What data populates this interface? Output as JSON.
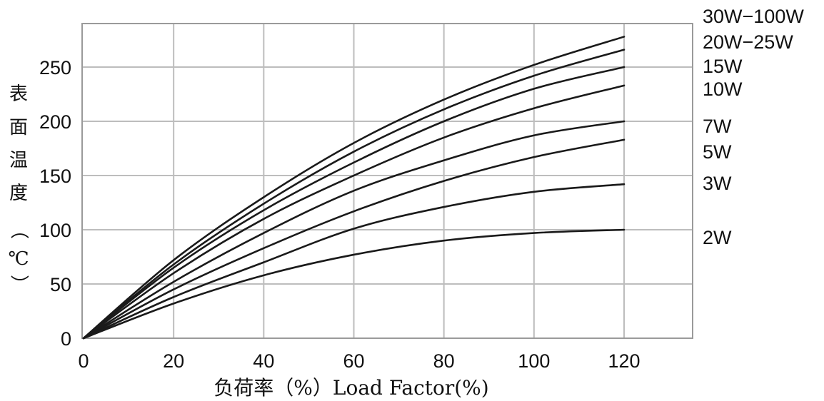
{
  "chart_data": {
    "type": "line",
    "xlabel": "负荷率（%）Load Factor(%)",
    "ylabel": "表面温度（℃）",
    "xlim": [
      0,
      135
    ],
    "ylim": [
      0,
      290
    ],
    "x_ticks": [
      0,
      20,
      40,
      60,
      80,
      100,
      120
    ],
    "y_ticks": [
      0,
      50,
      100,
      150,
      200,
      250
    ],
    "grid": true,
    "legend": "right-end labels",
    "x": [
      0,
      20,
      40,
      60,
      80,
      100,
      120
    ],
    "series": [
      {
        "name": "30W−100W",
        "values": [
          0,
          72,
          130,
          180,
          220,
          252,
          278
        ]
      },
      {
        "name": "20W−25W",
        "values": [
          0,
          68,
          124,
          172,
          211,
          242,
          266
        ]
      },
      {
        "name": "15W",
        "values": [
          0,
          65,
          118,
          162,
          200,
          230,
          250
        ]
      },
      {
        "name": "10W",
        "values": [
          0,
          60,
          110,
          150,
          185,
          212,
          233
        ]
      },
      {
        "name": "7W",
        "values": [
          0,
          52,
          97,
          136,
          164,
          187,
          200
        ]
      },
      {
        "name": "5W",
        "values": [
          0,
          45,
          83,
          117,
          145,
          167,
          183
        ]
      },
      {
        "name": "3W",
        "values": [
          0,
          38,
          70,
          101,
          121,
          135,
          142
        ]
      },
      {
        "name": "2W",
        "values": [
          0,
          32,
          58,
          77,
          90,
          97,
          100
        ]
      }
    ]
  }
}
